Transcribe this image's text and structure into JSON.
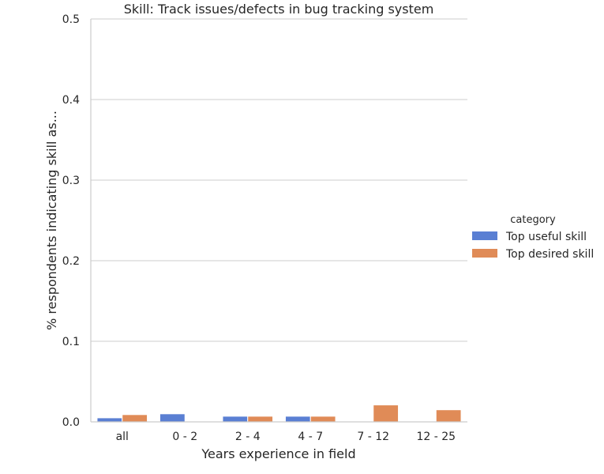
{
  "chart_data": {
    "type": "bar",
    "title": "Skill: Track issues/defects in bug tracking system",
    "xlabel": "Years experience in field",
    "ylabel": "% respondents indicating skill as...",
    "categories": [
      "all",
      "0 - 2",
      "2 - 4",
      "4 - 7",
      "7 - 12",
      "12 - 25"
    ],
    "series": [
      {
        "name": "Top useful skill",
        "values": [
          0.005,
          0.01,
          0.007,
          0.007,
          0.0,
          0.0
        ]
      },
      {
        "name": "Top desired skill",
        "values": [
          0.009,
          0.0,
          0.007,
          0.007,
          0.021,
          0.015
        ]
      }
    ],
    "ylim": [
      0,
      0.5
    ],
    "yticks": [
      0.0,
      0.1,
      0.2,
      0.3,
      0.4,
      0.5
    ],
    "ytick_labels": [
      "0.0",
      "0.1",
      "0.2",
      "0.3",
      "0.4",
      "0.5"
    ],
    "grid": true,
    "legend": {
      "title": "category",
      "placement": "right"
    },
    "colors": {
      "Top useful skill": "#5a7fd3",
      "Top desired skill": "#e08b57"
    }
  }
}
